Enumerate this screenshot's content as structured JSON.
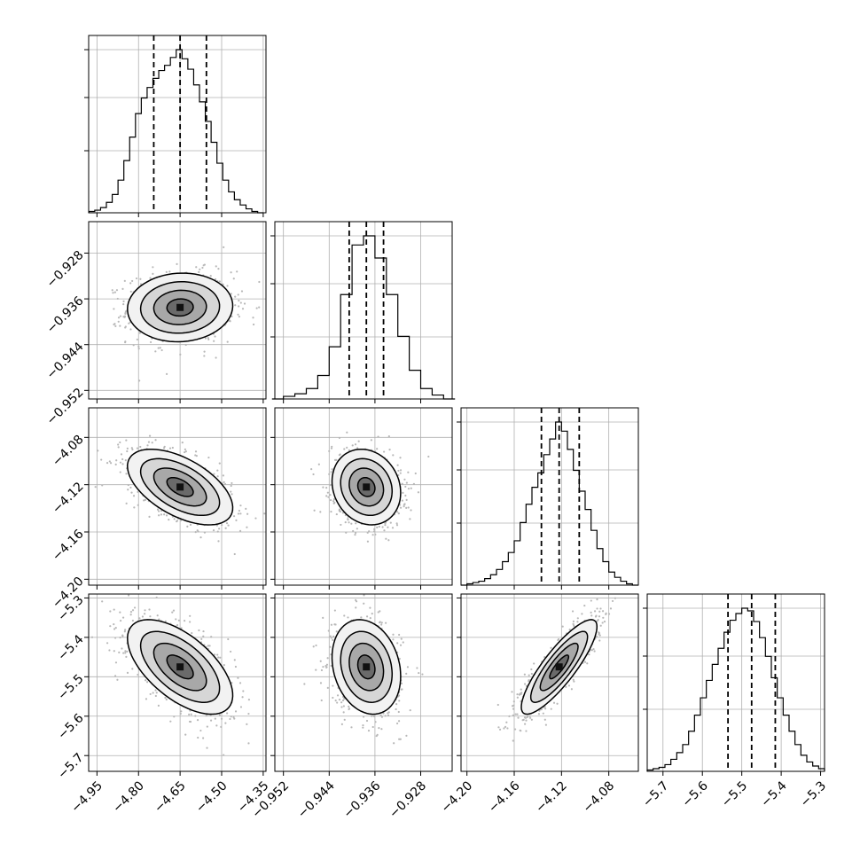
{
  "chart_data": {
    "type": "scatter",
    "layout": "corner",
    "grid": true,
    "parameters": [
      {
        "range": [
          -4.98,
          -4.34
        ],
        "ticks": [
          -4.95,
          -4.8,
          -4.65,
          -4.5,
          -4.35
        ],
        "tick_labels": [
          "−4.95",
          "−4.80",
          "−4.65",
          "−4.50",
          "−4.35"
        ],
        "quantiles": [
          -4.745,
          -4.65,
          -4.555
        ],
        "hist_bin_centers": [
          -4.9685,
          -4.9475,
          -4.9265,
          -4.9055,
          -4.8845,
          -4.8635,
          -4.8425,
          -4.8215,
          -4.8005,
          -4.7795,
          -4.7585,
          -4.7375,
          -4.7165,
          -4.6955,
          -4.6745,
          -4.6535,
          -4.6325,
          -4.6115,
          -4.5905,
          -4.5695,
          -4.5485,
          -4.5275,
          -4.5065,
          -4.4855,
          -4.4645,
          -4.4435,
          -4.4225,
          -4.4015,
          -4.3805,
          -4.3595
        ],
        "hist_counts": [
          1,
          2,
          4,
          8,
          14,
          25,
          40,
          58,
          76,
          88,
          96,
          103,
          109,
          113,
          119,
          125,
          118,
          110,
          98,
          85,
          70,
          54,
          38,
          25,
          16,
          10,
          6,
          3,
          1,
          0
        ]
      },
      {
        "range": [
          -0.9535,
          -0.9225
        ],
        "ticks": [
          -0.952,
          -0.944,
          -0.936,
          -0.928
        ],
        "tick_labels": [
          "−0.952",
          "−0.944",
          "−0.936",
          "−0.928"
        ],
        "quantiles": [
          -0.9405,
          -0.9375,
          -0.9345
        ],
        "hist_bin_centers": [
          -0.953,
          -0.951,
          -0.949,
          -0.947,
          -0.945,
          -0.943,
          -0.941,
          -0.939,
          -0.937,
          -0.935,
          -0.933,
          -0.931,
          -0.929,
          -0.927,
          -0.925,
          -0.923
        ],
        "hist_counts": [
          0,
          2,
          4,
          8,
          18,
          40,
          80,
          118,
          125,
          108,
          80,
          48,
          22,
          8,
          3,
          0
        ]
      },
      {
        "range": [
          -4.205,
          -4.055
        ],
        "ticks": [
          -4.2,
          -4.16,
          -4.12,
          -4.08
        ],
        "tick_labels": [
          "−4.20",
          "−4.16",
          "−4.12",
          "−4.08"
        ],
        "quantiles": [
          -4.137,
          -4.122,
          -4.105
        ],
        "hist_bin_centers": [
          -4.2025,
          -4.1975,
          -4.1925,
          -4.1875,
          -4.1825,
          -4.1775,
          -4.1725,
          -4.1675,
          -4.1625,
          -4.1575,
          -4.1525,
          -4.1475,
          -4.1425,
          -4.1375,
          -4.1325,
          -4.1275,
          -4.1225,
          -4.1175,
          -4.1125,
          -4.1075,
          -4.1025,
          -4.0975,
          -4.0925,
          -4.0875,
          -4.0825,
          -4.0775,
          -4.0725,
          -4.0675,
          -4.0625,
          -4.0575
        ],
        "hist_counts": [
          0,
          1,
          2,
          3,
          5,
          8,
          12,
          18,
          25,
          34,
          48,
          62,
          75,
          86,
          100,
          112,
          125,
          118,
          104,
          88,
          72,
          58,
          42,
          28,
          18,
          10,
          6,
          3,
          1,
          0
        ]
      },
      {
        "range": [
          -5.74,
          -5.29
        ],
        "ticks": [
          -5.7,
          -5.6,
          -5.5,
          -5.4,
          -5.3
        ],
        "tick_labels": [
          "−5.7",
          "−5.6",
          "−5.5",
          "−5.4",
          "−5.3"
        ],
        "quantiles": [
          -5.535,
          -5.475,
          -5.415
        ],
        "hist_bin_centers": [
          -5.7325,
          -5.7175,
          -5.7025,
          -5.6875,
          -5.6725,
          -5.6575,
          -5.6425,
          -5.6275,
          -5.6125,
          -5.5975,
          -5.5825,
          -5.5675,
          -5.5525,
          -5.5375,
          -5.5225,
          -5.5075,
          -5.4925,
          -5.4775,
          -5.4625,
          -5.4475,
          -5.4325,
          -5.4175,
          -5.4025,
          -5.3875,
          -5.3725,
          -5.3575,
          -5.3425,
          -5.3275,
          -5.3125,
          -5.2975
        ],
        "hist_counts": [
          1,
          2,
          3,
          5,
          9,
          14,
          20,
          30,
          42,
          55,
          68,
          80,
          92,
          104,
          113,
          118,
          122,
          120,
          112,
          100,
          86,
          70,
          55,
          42,
          30,
          20,
          12,
          7,
          4,
          2
        ]
      }
    ],
    "correlations": [
      {
        "i": 1,
        "j": 0,
        "rho": 0.05
      },
      {
        "i": 2,
        "j": 0,
        "rho": -0.55
      },
      {
        "i": 2,
        "j": 1,
        "rho": -0.15
      },
      {
        "i": 3,
        "j": 0,
        "rho": -0.6
      },
      {
        "i": 3,
        "j": 1,
        "rho": -0.2
      },
      {
        "i": 3,
        "j": 2,
        "rho": 0.85
      }
    ],
    "centers": [
      -4.65,
      -0.9375,
      -4.122,
      -5.475
    ],
    "sigmas": [
      0.095,
      0.003,
      0.016,
      0.06
    ],
    "contour_levels_sigma": [
      0.5,
      1.0,
      1.5,
      2.0
    ],
    "point_color": "#b8b8b8"
  }
}
